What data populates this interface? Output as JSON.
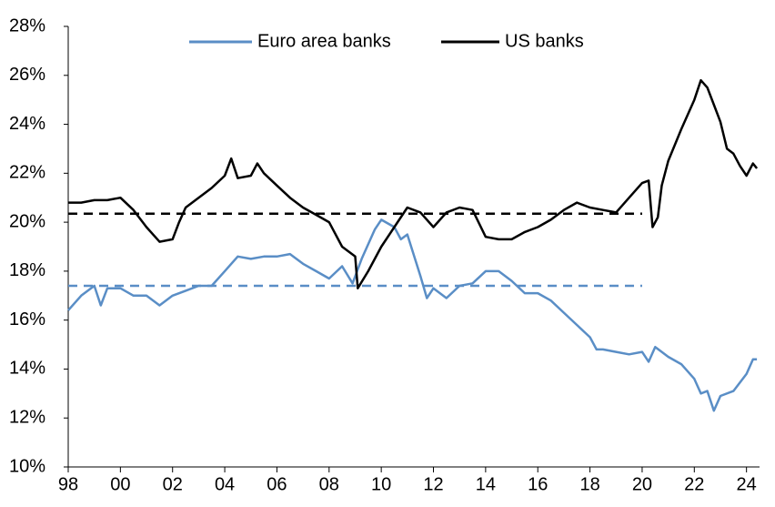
{
  "chart_data": {
    "type": "line",
    "series": [
      {
        "name": "Euro area banks",
        "color": "#5a8ec6",
        "x": [
          1998,
          1998.5,
          1999,
          1999.25,
          1999.5,
          2000,
          2000.5,
          2001,
          2001.5,
          2002,
          2002.5,
          2003,
          2003.5,
          2004,
          2004.5,
          2005,
          2005.5,
          2006,
          2006.5,
          2007,
          2007.5,
          2008,
          2008.5,
          2008.9,
          2009.25,
          2009.75,
          2010,
          2010.5,
          2010.75,
          2011,
          2011.5,
          2011.75,
          2012,
          2012.5,
          2013,
          2013.5,
          2014,
          2014.5,
          2015,
          2015.5,
          2016,
          2016.5,
          2017,
          2017.5,
          2018,
          2018.25,
          2018.5,
          2019,
          2019.5,
          2020,
          2020.25,
          2020.5,
          2020.75,
          2021,
          2021.5,
          2022,
          2022.25,
          2022.5,
          2022.75,
          2023,
          2023.5,
          2024,
          2024.25,
          2024.4
        ],
        "values": [
          16.4,
          17.0,
          17.4,
          16.6,
          17.3,
          17.3,
          17.0,
          17.0,
          16.6,
          17.0,
          17.2,
          17.4,
          17.4,
          18.0,
          18.6,
          18.5,
          18.6,
          18.6,
          18.7,
          18.3,
          18.0,
          17.7,
          18.2,
          17.5,
          18.5,
          19.7,
          20.1,
          19.8,
          19.3,
          19.5,
          17.8,
          16.9,
          17.3,
          16.9,
          17.4,
          17.5,
          18.0,
          18.0,
          17.6,
          17.1,
          17.1,
          16.8,
          16.3,
          15.8,
          15.3,
          14.8,
          14.8,
          14.7,
          14.6,
          14.7,
          14.3,
          14.9,
          14.7,
          14.5,
          14.2,
          13.6,
          13.0,
          13.1,
          12.3,
          12.9,
          13.1,
          13.8,
          14.4,
          14.4
        ]
      },
      {
        "name": "US banks",
        "color": "#000000",
        "x": [
          1998,
          1998.5,
          1999,
          1999.5,
          2000,
          2000.5,
          2001,
          2001.5,
          2002,
          2002.25,
          2002.5,
          2003,
          2003.5,
          2004,
          2004.25,
          2004.5,
          2005,
          2005.25,
          2005.5,
          2006,
          2006.5,
          2007,
          2007.5,
          2008,
          2008.5,
          2009,
          2009.1,
          2009.5,
          2010,
          2010.5,
          2011,
          2011.5,
          2012,
          2012.5,
          2013,
          2013.5,
          2014,
          2014.5,
          2015,
          2015.5,
          2016,
          2016.5,
          2017,
          2017.5,
          2018,
          2018.5,
          2019,
          2019.5,
          2020,
          2020.25,
          2020.4,
          2020.6,
          2020.75,
          2021,
          2021.5,
          2022,
          2022.25,
          2022.5,
          2022.75,
          2023,
          2023.25,
          2023.5,
          2023.75,
          2024,
          2024.25,
          2024.4
        ],
        "values": [
          20.8,
          20.8,
          20.9,
          20.9,
          21.0,
          20.5,
          19.8,
          19.2,
          19.3,
          20.0,
          20.6,
          21.0,
          21.4,
          21.9,
          22.6,
          21.8,
          21.9,
          22.4,
          22.0,
          21.5,
          21.0,
          20.6,
          20.3,
          20.0,
          19.0,
          18.6,
          17.3,
          18.0,
          19.0,
          19.8,
          20.6,
          20.4,
          19.8,
          20.4,
          20.6,
          20.5,
          19.4,
          19.3,
          19.3,
          19.6,
          19.8,
          20.1,
          20.5,
          20.8,
          20.6,
          20.5,
          20.4,
          21.0,
          21.6,
          21.7,
          19.8,
          20.2,
          21.5,
          22.5,
          23.8,
          25.0,
          25.8,
          25.5,
          24.8,
          24.1,
          23.0,
          22.8,
          22.3,
          21.9,
          22.4,
          22.2
        ]
      }
    ],
    "reference_lines": [
      {
        "color": "#5a8ec6",
        "value": 17.4,
        "x": [
          1998,
          2020
        ]
      },
      {
        "color": "#000000",
        "value": 20.35,
        "x": [
          1998,
          2020
        ]
      }
    ],
    "xlim": [
      1998,
      2024.5
    ],
    "xticks": [
      {
        "value": 1998,
        "label": "98"
      },
      {
        "value": 2000,
        "label": "00"
      },
      {
        "value": 2002,
        "label": "02"
      },
      {
        "value": 2004,
        "label": "04"
      },
      {
        "value": 2006,
        "label": "06"
      },
      {
        "value": 2008,
        "label": "08"
      },
      {
        "value": 2010,
        "label": "10"
      },
      {
        "value": 2012,
        "label": "12"
      },
      {
        "value": 2014,
        "label": "14"
      },
      {
        "value": 2016,
        "label": "16"
      },
      {
        "value": 2018,
        "label": "18"
      },
      {
        "value": 2020,
        "label": "20"
      },
      {
        "value": 2022,
        "label": "22"
      },
      {
        "value": 2024,
        "label": "24"
      }
    ],
    "ylim": [
      10,
      28
    ],
    "yticks": [
      {
        "value": 10,
        "label": "10%"
      },
      {
        "value": 12,
        "label": "12%"
      },
      {
        "value": 14,
        "label": "14%"
      },
      {
        "value": 16,
        "label": "16%"
      },
      {
        "value": 18,
        "label": "18%"
      },
      {
        "value": 20,
        "label": "20%"
      },
      {
        "value": 22,
        "label": "22%"
      },
      {
        "value": 24,
        "label": "24%"
      },
      {
        "value": 26,
        "label": "26%"
      },
      {
        "value": 28,
        "label": "28%"
      }
    ],
    "grid": false
  }
}
